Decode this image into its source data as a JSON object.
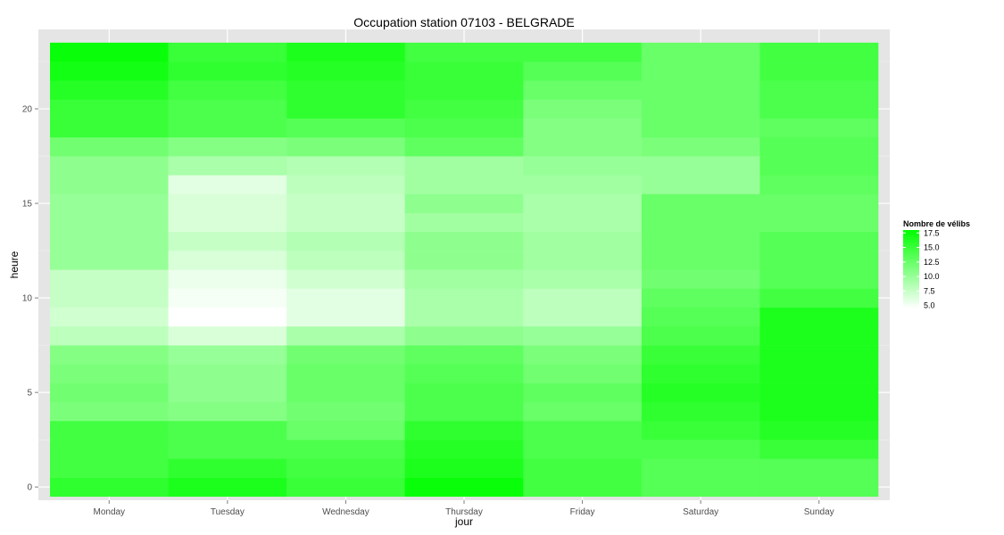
{
  "chart_data": {
    "type": "heatmap",
    "title": "Occupation station 07103 - BELGRADE",
    "xlabel": "jour",
    "ylabel": "heure",
    "x_categories": [
      "Monday",
      "Tuesday",
      "Wednesday",
      "Thursday",
      "Friday",
      "Saturday",
      "Sunday"
    ],
    "y_values": [
      0,
      1,
      2,
      3,
      4,
      5,
      6,
      7,
      8,
      9,
      10,
      11,
      12,
      13,
      14,
      15,
      16,
      17,
      18,
      19,
      20,
      21,
      22,
      23
    ],
    "y_ticks": [
      0,
      5,
      10,
      15,
      20
    ],
    "ylim": [
      -0.7,
      24.2
    ],
    "grid": true,
    "legend": {
      "title": "Nombre de vélibs",
      "position": "right",
      "breaks": [
        17.5,
        15.0,
        12.5,
        10.0,
        7.5,
        5.0
      ],
      "min": 4.5,
      "max": 18,
      "color_low": "#ffffff",
      "color_high": "#00ff00"
    },
    "values": [
      [
        15.5,
        16.5,
        15.0,
        17.5,
        14.5,
        13.5,
        13.5
      ],
      [
        14.5,
        15.5,
        14.5,
        16.5,
        14.5,
        13.5,
        13.5
      ],
      [
        14.5,
        14.0,
        14.0,
        16.0,
        14.0,
        14.0,
        15.0
      ],
      [
        14.5,
        14.0,
        12.5,
        15.5,
        14.0,
        15.0,
        16.0
      ],
      [
        11.5,
        11.0,
        12.0,
        14.0,
        12.5,
        15.5,
        16.5
      ],
      [
        12.0,
        10.5,
        12.5,
        14.0,
        13.0,
        16.0,
        16.5
      ],
      [
        11.5,
        10.5,
        12.5,
        13.5,
        12.0,
        15.5,
        16.5
      ],
      [
        11.0,
        10.0,
        12.0,
        13.0,
        11.5,
        15.0,
        16.5
      ],
      [
        8.0,
        6.5,
        9.0,
        10.5,
        10.0,
        14.0,
        16.5
      ],
      [
        7.0,
        4.5,
        6.0,
        9.0,
        8.0,
        13.5,
        16.5
      ],
      [
        7.5,
        5.0,
        6.0,
        9.0,
        8.0,
        13.0,
        14.5
      ],
      [
        7.5,
        5.5,
        7.0,
        9.5,
        9.0,
        12.0,
        13.5
      ],
      [
        10.0,
        6.5,
        8.0,
        10.5,
        9.5,
        12.5,
        13.5
      ],
      [
        10.0,
        7.5,
        8.5,
        10.5,
        9.5,
        12.5,
        13.5
      ],
      [
        10.0,
        6.5,
        7.5,
        9.5,
        9.0,
        12.5,
        12.5
      ],
      [
        10.0,
        6.5,
        7.5,
        10.5,
        9.0,
        12.5,
        12.5
      ],
      [
        10.5,
        6.0,
        8.0,
        9.5,
        9.5,
        10.0,
        13.0
      ],
      [
        10.5,
        9.0,
        8.5,
        9.5,
        10.0,
        10.0,
        13.5
      ],
      [
        12.0,
        11.0,
        11.5,
        13.0,
        11.0,
        11.5,
        13.5
      ],
      [
        15.0,
        14.0,
        13.5,
        14.0,
        11.0,
        12.5,
        13.0
      ],
      [
        15.0,
        14.0,
        15.5,
        14.5,
        11.5,
        12.5,
        14.0
      ],
      [
        16.0,
        14.5,
        15.5,
        15.0,
        12.5,
        12.5,
        14.0
      ],
      [
        17.0,
        15.5,
        16.0,
        15.0,
        13.5,
        12.5,
        14.5
      ],
      [
        17.5,
        15.0,
        16.5,
        14.5,
        14.5,
        12.5,
        14.5
      ]
    ]
  }
}
